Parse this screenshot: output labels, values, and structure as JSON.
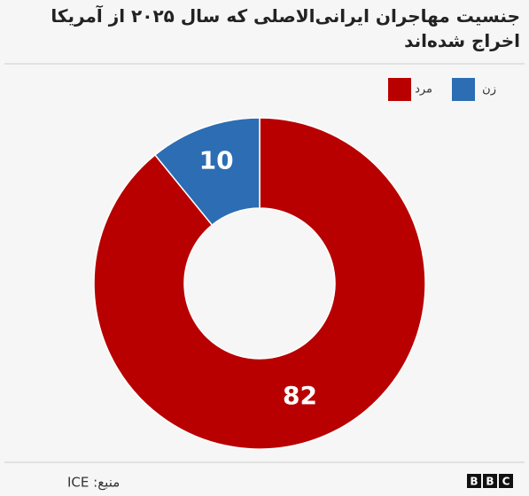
{
  "chart_data": {
    "type": "donut",
    "title": "جنسیت مهاجران ایرانی‌الاصلی که سال ۲۰۲۵ از آمریکا اخراج شده‌اند",
    "categories": [
      "مرد",
      "زن"
    ],
    "values": [
      82,
      10
    ],
    "colors": [
      "#b80000",
      "#2c6db4"
    ],
    "legend": "top-right",
    "source": "منبع: ICE",
    "logo": [
      "B",
      "B",
      "C"
    ]
  }
}
